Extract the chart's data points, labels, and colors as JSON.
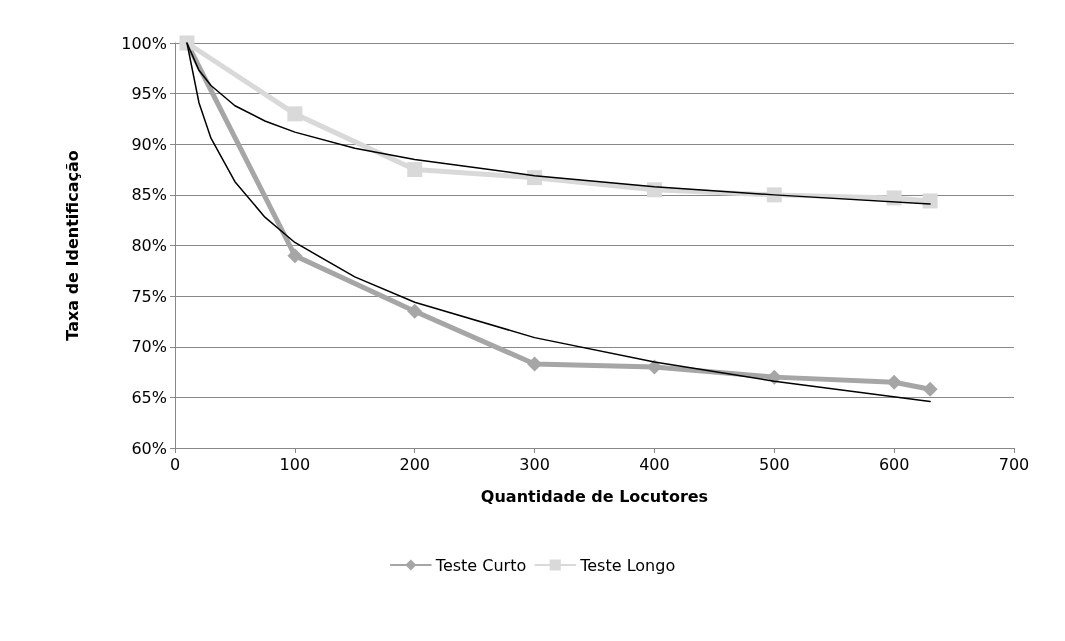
{
  "chart_data": {
    "type": "line",
    "xlabel": "Quantidade de Locutores",
    "ylabel": "Taxa de Identificação",
    "xlim": [
      0,
      700
    ],
    "xticks": [
      0,
      100,
      200,
      300,
      400,
      500,
      600,
      700
    ],
    "ylim": [
      60,
      100
    ],
    "yticks": [
      {
        "value": 60,
        "label": "60%"
      },
      {
        "value": 65,
        "label": "65%"
      },
      {
        "value": 70,
        "label": "70%"
      },
      {
        "value": 75,
        "label": "75%"
      },
      {
        "value": 80,
        "label": "80%"
      },
      {
        "value": 85,
        "label": "85%"
      },
      {
        "value": 90,
        "label": "90%"
      },
      {
        "value": 95,
        "label": "95%"
      },
      {
        "value": 100,
        "label": "100%"
      }
    ],
    "grid": "y",
    "legend": "bottom",
    "x": [
      10,
      100,
      200,
      300,
      400,
      500,
      600,
      630
    ],
    "series": [
      {
        "name": "Teste Curto",
        "color": "#a6a6a6",
        "marker": "diamond",
        "values": [
          100,
          79,
          73.5,
          68.3,
          68,
          67,
          66.5,
          65.8
        ]
      },
      {
        "name": "Teste Longo",
        "color": "#d9d9d9",
        "marker": "square",
        "values": [
          100,
          93,
          87.5,
          86.7,
          85.5,
          85,
          84.7,
          84.4
        ]
      },
      {
        "color": "#000000",
        "marker": "none",
        "x": [
          10,
          20,
          30,
          50,
          75,
          100,
          150,
          200,
          300,
          400,
          500,
          630
        ],
        "values": [
          100,
          94.1,
          90.6,
          86.3,
          82.8,
          80.3,
          76.9,
          74.4,
          70.9,
          68.5,
          66.6,
          64.6
        ]
      },
      {
        "color": "#000000",
        "marker": "none",
        "x": [
          10,
          20,
          30,
          50,
          75,
          100,
          150,
          200,
          300,
          400,
          500,
          630
        ],
        "values": [
          100,
          97.3,
          95.8,
          93.8,
          92.3,
          91.2,
          89.6,
          88.5,
          86.9,
          85.8,
          85.0,
          84.1
        ]
      }
    ]
  }
}
